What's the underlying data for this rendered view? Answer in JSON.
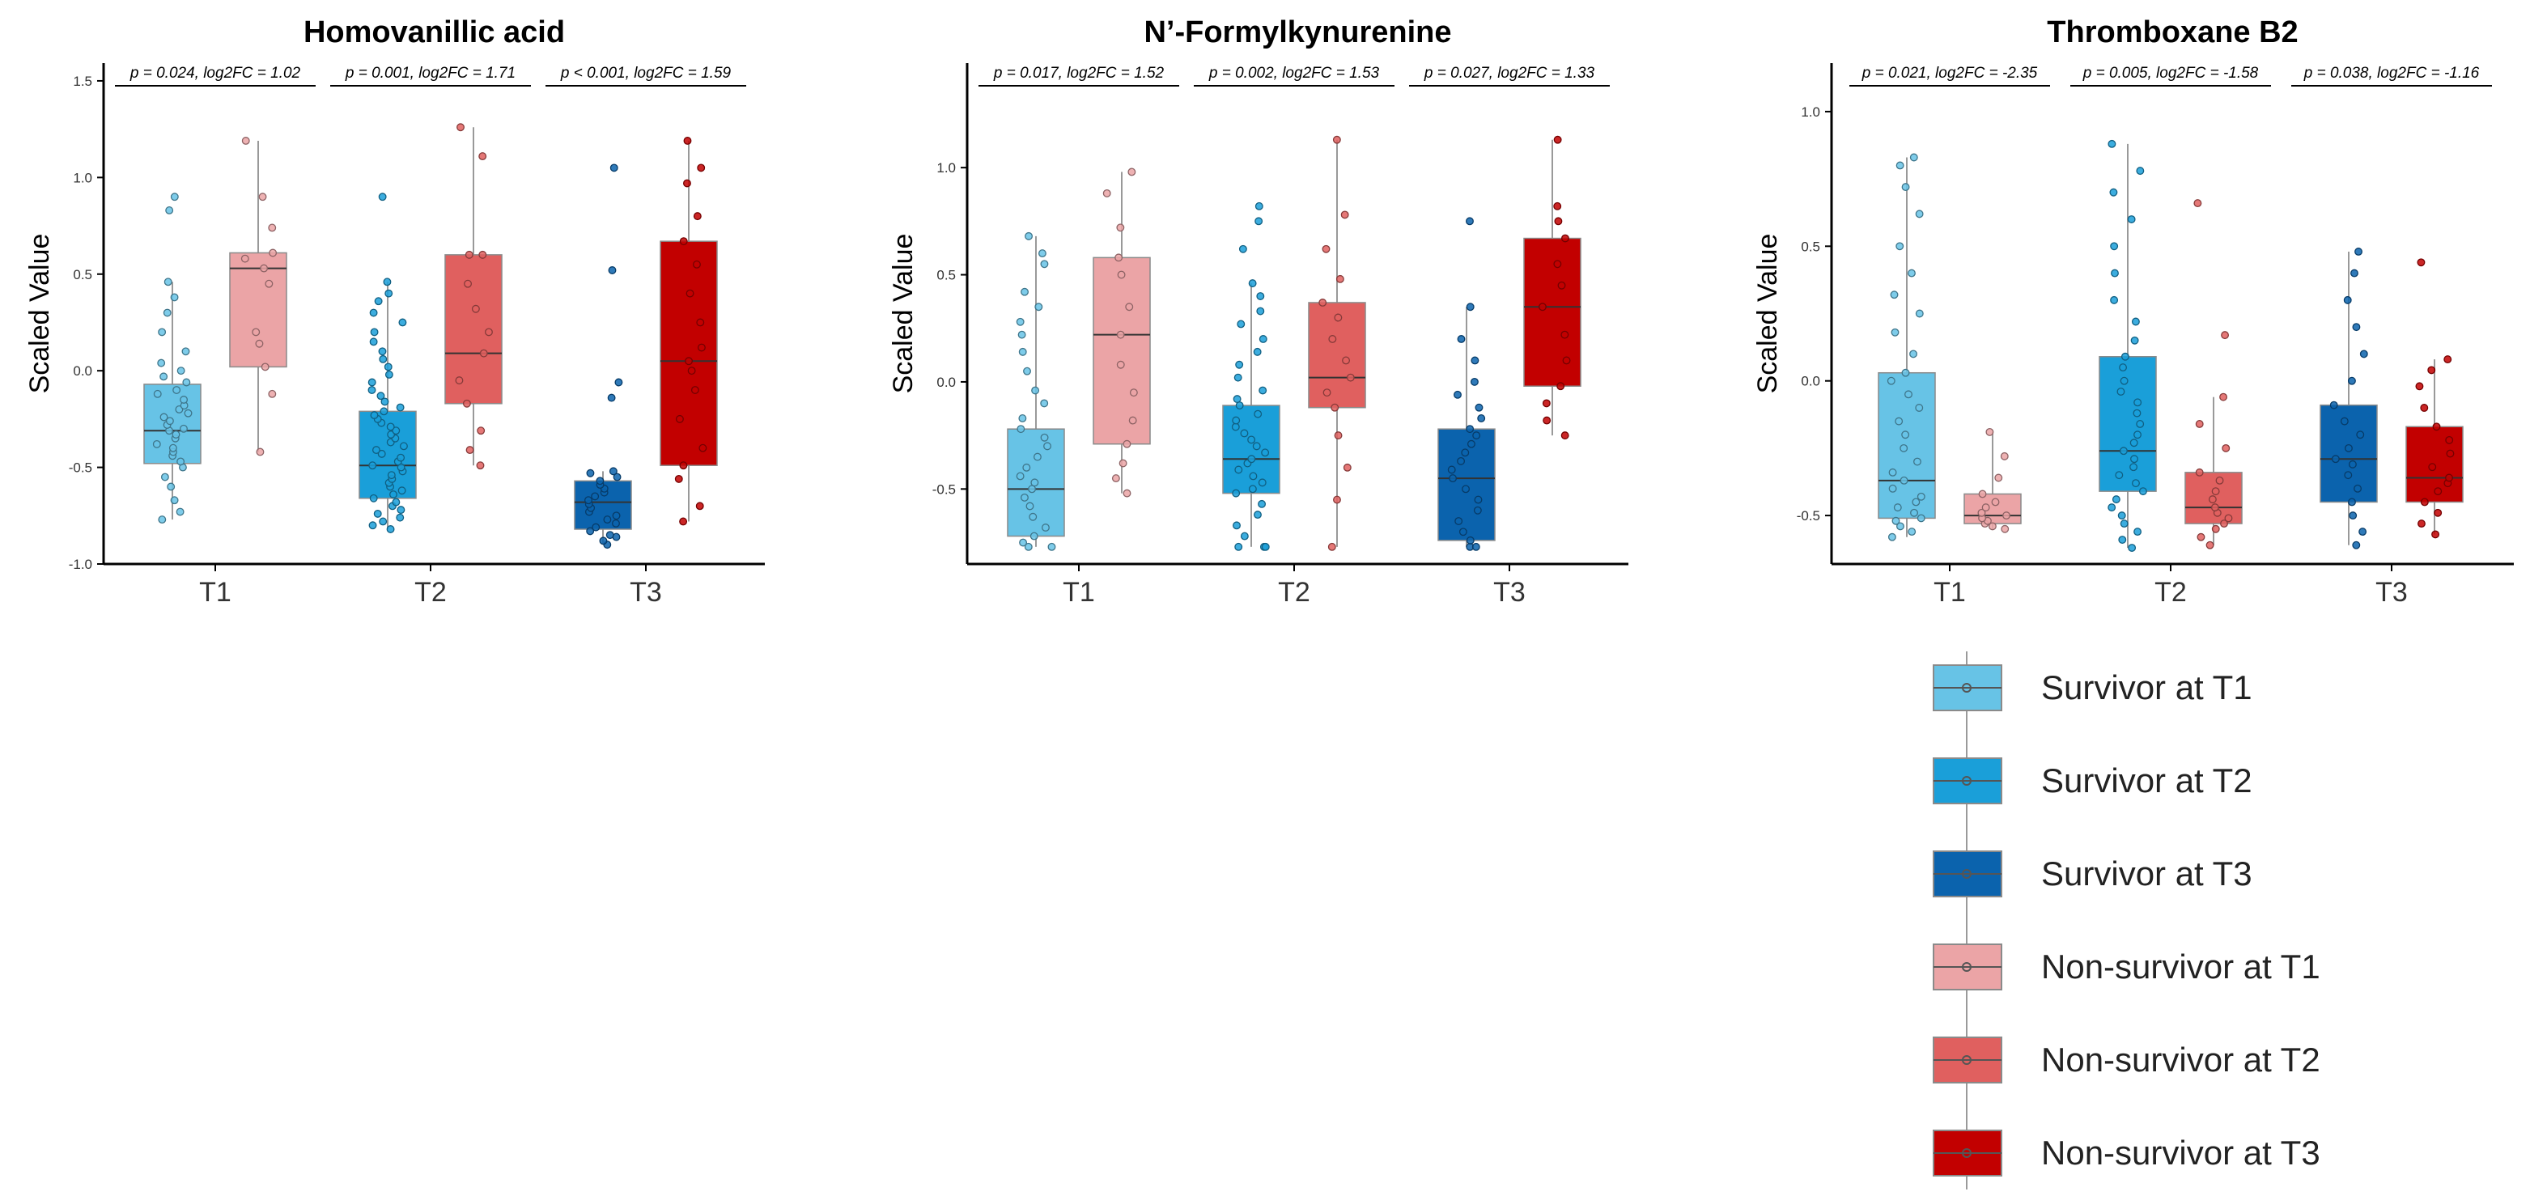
{
  "chart_data": [
    {
      "type": "box",
      "title": "Homovanillic acid",
      "ylabel": "Scaled Value",
      "xlabel": "",
      "categories": [
        "T1",
        "T2",
        "T3"
      ],
      "ylim": [
        -1.0,
        1.55
      ],
      "yticks": [
        -1.0,
        -0.5,
        0.0,
        0.5,
        1.0,
        1.5
      ],
      "ytick_labels": [
        "-1.0",
        "-0.5",
        "0.0",
        "0.5",
        "1.0",
        "1.5"
      ],
      "annotations": [
        "p = 0.024, log2FC = 1.02",
        "p = 0.001, log2FC = 1.71",
        "p < 0.001, log2FC = 1.59"
      ],
      "series": [
        {
          "name": "Survivor",
          "boxes": [
            {
              "min": -0.77,
              "q1": -0.48,
              "median": -0.31,
              "q3": -0.07,
              "max": 0.46,
              "points": [
                -0.77,
                -0.73,
                -0.67,
                -0.6,
                -0.55,
                -0.5,
                -0.47,
                -0.44,
                -0.42,
                -0.4,
                -0.38,
                -0.35,
                -0.33,
                -0.31,
                -0.3,
                -0.28,
                -0.26,
                -0.24,
                -0.22,
                -0.2,
                -0.18,
                -0.15,
                -0.12,
                -0.1,
                -0.06,
                -0.03,
                0.0,
                0.04,
                0.1,
                0.2,
                0.3,
                0.38,
                0.46,
                0.83,
                0.9
              ]
            },
            {
              "min": -0.82,
              "q1": -0.66,
              "median": -0.49,
              "q3": -0.21,
              "max": 0.46,
              "points": [
                -0.82,
                -0.8,
                -0.78,
                -0.76,
                -0.74,
                -0.72,
                -0.7,
                -0.68,
                -0.66,
                -0.64,
                -0.62,
                -0.6,
                -0.58,
                -0.56,
                -0.54,
                -0.52,
                -0.5,
                -0.49,
                -0.47,
                -0.45,
                -0.43,
                -0.41,
                -0.39,
                -0.37,
                -0.35,
                -0.33,
                -0.31,
                -0.29,
                -0.27,
                -0.25,
                -0.23,
                -0.21,
                -0.19,
                -0.16,
                -0.13,
                -0.1,
                -0.06,
                -0.02,
                0.02,
                0.06,
                0.1,
                0.15,
                0.2,
                0.25,
                0.3,
                0.36,
                0.4,
                0.46,
                0.9
              ]
            },
            {
              "min": -0.9,
              "q1": -0.82,
              "median": -0.68,
              "q3": -0.57,
              "max": -0.52,
              "points": [
                -0.9,
                -0.88,
                -0.86,
                -0.85,
                -0.83,
                -0.81,
                -0.79,
                -0.77,
                -0.75,
                -0.73,
                -0.71,
                -0.69,
                -0.67,
                -0.65,
                -0.63,
                -0.61,
                -0.59,
                -0.57,
                -0.55,
                -0.53,
                -0.52,
                -0.14,
                -0.06,
                0.52,
                1.05
              ]
            }
          ]
        },
        {
          "name": "Non-survivor",
          "boxes": [
            {
              "min": -0.42,
              "q1": 0.02,
              "median": 0.53,
              "q3": 0.61,
              "max": 1.19,
              "points": [
                -0.42,
                -0.12,
                0.02,
                0.14,
                0.2,
                0.45,
                0.53,
                0.58,
                0.61,
                0.74,
                0.9,
                1.19
              ]
            },
            {
              "min": -0.49,
              "q1": -0.17,
              "median": 0.09,
              "q3": 0.6,
              "max": 1.26,
              "points": [
                -0.49,
                -0.41,
                -0.31,
                -0.17,
                -0.05,
                0.09,
                0.2,
                0.32,
                0.45,
                0.6,
                0.6,
                1.11,
                1.26
              ]
            },
            {
              "min": -0.78,
              "q1": -0.49,
              "median": 0.05,
              "q3": 0.67,
              "max": 1.19,
              "points": [
                -0.78,
                -0.7,
                -0.56,
                -0.49,
                -0.4,
                -0.25,
                -0.1,
                0.0,
                0.05,
                0.12,
                0.25,
                0.4,
                0.55,
                0.67,
                0.8,
                0.97,
                1.05,
                1.19
              ]
            }
          ]
        }
      ]
    },
    {
      "type": "box",
      "title": "N’-Formylkynurenine",
      "ylabel": "Scaled Value",
      "xlabel": "",
      "categories": [
        "T1",
        "T2",
        "T3"
      ],
      "ylim": [
        -0.85,
        1.45
      ],
      "yticks": [
        -0.5,
        0.0,
        0.5,
        1.0
      ],
      "ytick_labels": [
        "-0.5",
        "0.0",
        "0.5",
        "1.0"
      ],
      "annotations": [
        "p = 0.017, log2FC = 1.52",
        "p = 0.002, log2FC = 1.53",
        "p = 0.027, log2FC = 1.33"
      ],
      "series": [
        {
          "name": "Survivor",
          "boxes": [
            {
              "min": -0.77,
              "q1": -0.72,
              "median": -0.5,
              "q3": -0.22,
              "max": 0.68,
              "points": [
                -0.77,
                -0.77,
                -0.75,
                -0.72,
                -0.68,
                -0.63,
                -0.58,
                -0.54,
                -0.5,
                -0.47,
                -0.44,
                -0.4,
                -0.35,
                -0.3,
                -0.26,
                -0.22,
                -0.17,
                -0.1,
                -0.04,
                0.05,
                0.14,
                0.22,
                0.28,
                0.35,
                0.42,
                0.55,
                0.6,
                0.68
              ]
            },
            {
              "min": -0.77,
              "q1": -0.52,
              "median": -0.36,
              "q3": -0.11,
              "max": 0.46,
              "points": [
                -0.77,
                -0.77,
                -0.77,
                -0.72,
                -0.67,
                -0.62,
                -0.57,
                -0.52,
                -0.5,
                -0.47,
                -0.44,
                -0.41,
                -0.38,
                -0.36,
                -0.33,
                -0.3,
                -0.27,
                -0.24,
                -0.21,
                -0.18,
                -0.15,
                -0.11,
                -0.08,
                -0.04,
                0.02,
                0.08,
                0.14,
                0.2,
                0.27,
                0.33,
                0.4,
                0.46,
                0.62,
                0.75,
                0.82
              ]
            },
            {
              "min": -0.77,
              "q1": -0.74,
              "median": -0.45,
              "q3": -0.22,
              "max": 0.35,
              "points": [
                -0.77,
                -0.77,
                -0.74,
                -0.7,
                -0.65,
                -0.6,
                -0.55,
                -0.5,
                -0.45,
                -0.41,
                -0.37,
                -0.33,
                -0.29,
                -0.25,
                -0.22,
                -0.17,
                -0.12,
                -0.06,
                0.0,
                0.1,
                0.2,
                0.35,
                0.75
              ]
            }
          ]
        },
        {
          "name": "Non-survivor",
          "boxes": [
            {
              "min": -0.52,
              "q1": -0.29,
              "median": 0.22,
              "q3": 0.58,
              "max": 0.98,
              "points": [
                -0.52,
                -0.45,
                -0.38,
                -0.29,
                -0.18,
                -0.05,
                0.08,
                0.22,
                0.35,
                0.5,
                0.58,
                0.72,
                0.88,
                0.98
              ]
            },
            {
              "min": -0.77,
              "q1": -0.12,
              "median": 0.02,
              "q3": 0.37,
              "max": 1.13,
              "points": [
                -0.77,
                -0.55,
                -0.4,
                -0.25,
                -0.12,
                -0.05,
                0.02,
                0.1,
                0.2,
                0.3,
                0.37,
                0.48,
                0.62,
                0.78,
                1.13
              ]
            },
            {
              "min": -0.25,
              "q1": -0.02,
              "median": 0.35,
              "q3": 0.67,
              "max": 1.13,
              "points": [
                -0.25,
                -0.18,
                -0.1,
                -0.02,
                0.1,
                0.22,
                0.35,
                0.45,
                0.55,
                0.67,
                0.75,
                0.82,
                1.13
              ]
            }
          ]
        }
      ]
    },
    {
      "type": "box",
      "title": "Thromboxane B2",
      "ylabel": "Scaled Value",
      "xlabel": "",
      "categories": [
        "T1",
        "T2",
        "T3"
      ],
      "ylim": [
        -0.68,
        1.15
      ],
      "yticks": [
        -0.5,
        0.0,
        0.5,
        1.0
      ],
      "ytick_labels": [
        "-0.5",
        "0.0",
        "0.5",
        "1.0"
      ],
      "annotations": [
        "p = 0.021, log2FC = -2.35",
        "p = 0.005, log2FC = -1.58",
        "p = 0.038, log2FC = -1.16"
      ],
      "series": [
        {
          "name": "Survivor",
          "boxes": [
            {
              "min": -0.58,
              "q1": -0.51,
              "median": -0.37,
              "q3": 0.03,
              "max": 0.83,
              "points": [
                -0.58,
                -0.56,
                -0.54,
                -0.52,
                -0.51,
                -0.49,
                -0.47,
                -0.45,
                -0.43,
                -0.4,
                -0.37,
                -0.34,
                -0.3,
                -0.25,
                -0.2,
                -0.15,
                -0.1,
                -0.05,
                0.0,
                0.03,
                0.1,
                0.18,
                0.25,
                0.32,
                0.4,
                0.5,
                0.62,
                0.72,
                0.8,
                0.83
              ]
            },
            {
              "min": -0.62,
              "q1": -0.41,
              "median": -0.26,
              "q3": 0.09,
              "max": 0.88,
              "points": [
                -0.62,
                -0.59,
                -0.56,
                -0.53,
                -0.5,
                -0.47,
                -0.44,
                -0.41,
                -0.38,
                -0.35,
                -0.32,
                -0.29,
                -0.26,
                -0.23,
                -0.2,
                -0.16,
                -0.12,
                -0.08,
                -0.04,
                0.0,
                0.05,
                0.09,
                0.15,
                0.22,
                0.3,
                0.4,
                0.5,
                0.6,
                0.7,
                0.78,
                0.88
              ]
            },
            {
              "min": -0.61,
              "q1": -0.45,
              "median": -0.29,
              "q3": -0.09,
              "max": 0.48,
              "points": [
                -0.61,
                -0.56,
                -0.5,
                -0.45,
                -0.4,
                -0.35,
                -0.31,
                -0.29,
                -0.25,
                -0.2,
                -0.15,
                -0.09,
                0.0,
                0.1,
                0.2,
                0.3,
                0.4,
                0.48
              ]
            }
          ]
        },
        {
          "name": "Non-survivor",
          "boxes": [
            {
              "min": -0.55,
              "q1": -0.53,
              "median": -0.5,
              "q3": -0.42,
              "max": -0.19,
              "points": [
                -0.55,
                -0.54,
                -0.53,
                -0.52,
                -0.51,
                -0.5,
                -0.49,
                -0.47,
                -0.45,
                -0.42,
                -0.36,
                -0.28,
                -0.19
              ]
            },
            {
              "min": -0.61,
              "q1": -0.53,
              "median": -0.47,
              "q3": -0.34,
              "max": -0.06,
              "points": [
                -0.61,
                -0.58,
                -0.55,
                -0.53,
                -0.51,
                -0.49,
                -0.47,
                -0.44,
                -0.41,
                -0.37,
                -0.34,
                -0.25,
                -0.16,
                -0.06,
                0.17,
                0.66
              ]
            },
            {
              "min": -0.57,
              "q1": -0.45,
              "median": -0.36,
              "q3": -0.17,
              "max": 0.08,
              "points": [
                -0.57,
                -0.53,
                -0.49,
                -0.45,
                -0.41,
                -0.38,
                -0.36,
                -0.32,
                -0.27,
                -0.22,
                -0.17,
                -0.1,
                -0.02,
                0.04,
                0.08,
                0.44
              ]
            }
          ]
        }
      ]
    }
  ],
  "legend": {
    "items": [
      {
        "label": "Survivor at T1",
        "color": "#67c3e6"
      },
      {
        "label": "Survivor at T2",
        "color": "#1a9fd9"
      },
      {
        "label": "Survivor at T3",
        "color": "#0b63ad"
      },
      {
        "label": "Non-survivor at T1",
        "color": "#eba4a6"
      },
      {
        "label": "Non-survivor at T2",
        "color": "#e0605f"
      },
      {
        "label": "Non-survivor at T3",
        "color": "#c20000"
      }
    ]
  },
  "colors": {
    "survivor": [
      "#67c3e6",
      "#1a9fd9",
      "#0b63ad"
    ],
    "nonsurvivor": [
      "#eba4a6",
      "#e0605f",
      "#c20000"
    ]
  }
}
